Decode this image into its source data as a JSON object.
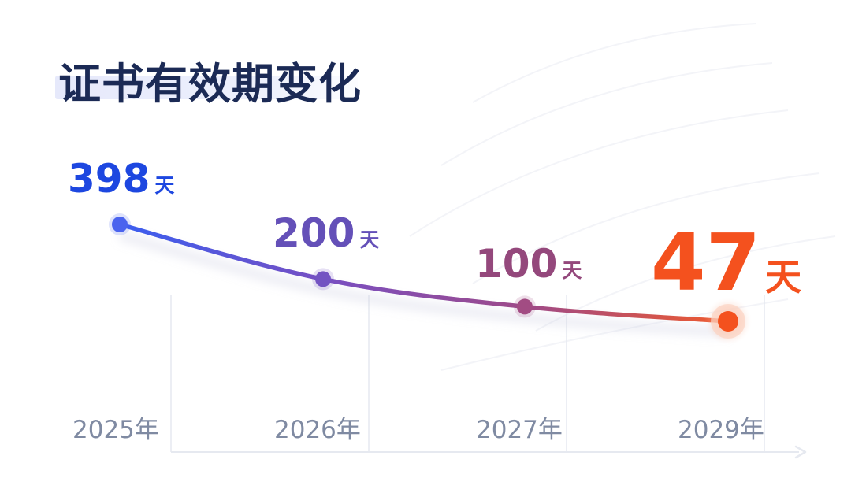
{
  "title": "证书有效期变化",
  "colors": {
    "title": "#1b2a55",
    "tick": "#7f8aa2",
    "grid": "#e4e7ef",
    "gradient": [
      "#3a5ef0",
      "#7a4fc0",
      "#a04a86",
      "#f05a2c"
    ],
    "highlight": "#f4511e"
  },
  "chart_data": {
    "type": "line",
    "categories": [
      "2025年",
      "2026年",
      "2027年",
      "2029年"
    ],
    "series": [
      {
        "values": [
          398,
          200,
          100,
          47
        ]
      }
    ],
    "labels": [
      {
        "number": "398",
        "unit": "天",
        "color": "#1d47e0"
      },
      {
        "number": "200",
        "unit": "天",
        "color": "#6450b8"
      },
      {
        "number": "100",
        "unit": "天",
        "color": "#94487c"
      },
      {
        "number": "47",
        "unit": "天",
        "color": "#f4511e"
      }
    ],
    "title": "证书有效期变化",
    "xlabel": "",
    "ylabel": "",
    "grid": "vertical",
    "legend": "none"
  }
}
